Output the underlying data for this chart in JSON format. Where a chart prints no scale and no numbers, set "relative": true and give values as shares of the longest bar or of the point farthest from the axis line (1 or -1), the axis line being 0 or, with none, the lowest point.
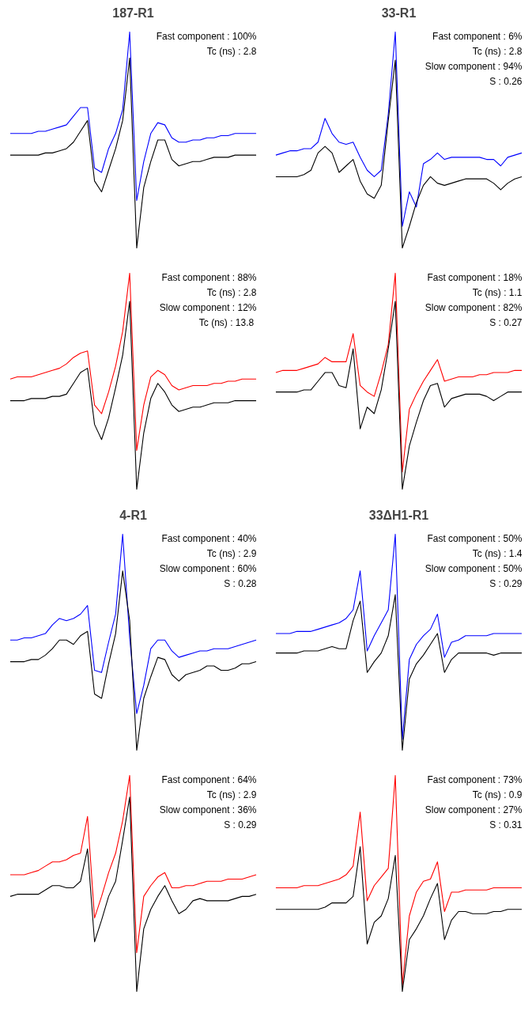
{
  "chart_data": [
    {
      "type": "line",
      "title": "187-R1",
      "relative": true,
      "categories": [
        null,
        null,
        null,
        null,
        null,
        null,
        null,
        null,
        null,
        null,
        null,
        null,
        null,
        null,
        null,
        null,
        null,
        null,
        null,
        null,
        null,
        null,
        null,
        null,
        null,
        null,
        null,
        null,
        null,
        null,
        null,
        null,
        null,
        null,
        null,
        null
      ],
      "annotations": [
        "Fast component : 100%",
        "Tc (ns) : 2.8"
      ],
      "series": [
        {
          "color": "#0000ff",
          "values": [
            0.53,
            0.53,
            0.53,
            0.53,
            0.54,
            0.54,
            0.55,
            0.56,
            0.57,
            0.61,
            0.65,
            0.65,
            0.37,
            0.35,
            0.46,
            0.53,
            0.64,
            1.0,
            0.22,
            0.4,
            0.53,
            0.58,
            0.57,
            0.51,
            0.49,
            0.49,
            0.5,
            0.5,
            0.51,
            0.51,
            0.52,
            0.52,
            0.53,
            0.53,
            0.53,
            0.53
          ]
        },
        {
          "color": "#000000",
          "values": [
            0.43,
            0.43,
            0.43,
            0.43,
            0.43,
            0.44,
            0.44,
            0.45,
            0.46,
            0.49,
            0.54,
            0.59,
            0.31,
            0.26,
            0.36,
            0.46,
            0.59,
            0.88,
            0.0,
            0.28,
            0.4,
            0.5,
            0.5,
            0.41,
            0.38,
            0.39,
            0.4,
            0.4,
            0.41,
            0.42,
            0.42,
            0.42,
            0.43,
            0.43,
            0.43,
            0.43
          ]
        }
      ]
    },
    {
      "type": "line",
      "title": "33-R1",
      "relative": true,
      "categories": [
        null,
        null,
        null,
        null,
        null,
        null,
        null,
        null,
        null,
        null,
        null,
        null,
        null,
        null,
        null,
        null,
        null,
        null,
        null,
        null,
        null,
        null,
        null,
        null,
        null,
        null,
        null,
        null,
        null,
        null,
        null,
        null,
        null,
        null,
        null,
        null
      ],
      "annotations": [
        "Fast component : 6%",
        "Tc (ns) : 2.8",
        "Slow component : 94%",
        "S : 0.26"
      ],
      "series": [
        {
          "color": "#0000ff",
          "values": [
            0.43,
            0.44,
            0.45,
            0.45,
            0.46,
            0.46,
            0.49,
            0.6,
            0.53,
            0.49,
            0.48,
            0.49,
            0.42,
            0.36,
            0.33,
            0.36,
            0.62,
            1.0,
            0.1,
            0.26,
            0.19,
            0.39,
            0.41,
            0.44,
            0.41,
            0.42,
            0.42,
            0.42,
            0.42,
            0.42,
            0.41,
            0.41,
            0.38,
            0.42,
            0.43,
            0.44
          ]
        },
        {
          "color": "#000000",
          "values": [
            0.33,
            0.33,
            0.33,
            0.33,
            0.34,
            0.36,
            0.44,
            0.47,
            0.44,
            0.35,
            0.38,
            0.41,
            0.31,
            0.25,
            0.23,
            0.29,
            0.59,
            0.87,
            0.0,
            0.1,
            0.21,
            0.29,
            0.33,
            0.3,
            0.29,
            0.3,
            0.31,
            0.32,
            0.32,
            0.32,
            0.32,
            0.3,
            0.27,
            0.3,
            0.32,
            0.33
          ]
        }
      ]
    },
    {
      "type": "line",
      "relative": true,
      "categories": [
        null,
        null,
        null,
        null,
        null,
        null,
        null,
        null,
        null,
        null,
        null,
        null,
        null,
        null,
        null,
        null,
        null,
        null,
        null,
        null,
        null,
        null,
        null,
        null,
        null,
        null,
        null,
        null,
        null,
        null,
        null,
        null,
        null,
        null,
        null,
        null
      ],
      "annotations": [
        "Fast component : 88%",
        "Tc (ns) : 2.8",
        "Slow component : 12%",
        "Tc (ns)  : 13.8"
      ],
      "series": [
        {
          "color": "#ff0000",
          "values": [
            0.51,
            0.52,
            0.52,
            0.52,
            0.53,
            0.54,
            0.55,
            0.56,
            0.58,
            0.61,
            0.63,
            0.64,
            0.39,
            0.35,
            0.45,
            0.57,
            0.73,
            1.0,
            0.18,
            0.39,
            0.52,
            0.55,
            0.53,
            0.48,
            0.46,
            0.47,
            0.48,
            0.48,
            0.48,
            0.49,
            0.49,
            0.5,
            0.5,
            0.51,
            0.51,
            0.51
          ]
        },
        {
          "color": "#000000",
          "values": [
            0.41,
            0.41,
            0.41,
            0.42,
            0.42,
            0.42,
            0.43,
            0.43,
            0.44,
            0.49,
            0.54,
            0.56,
            0.3,
            0.23,
            0.33,
            0.47,
            0.62,
            0.87,
            0.0,
            0.26,
            0.42,
            0.49,
            0.45,
            0.39,
            0.36,
            0.37,
            0.38,
            0.38,
            0.39,
            0.4,
            0.4,
            0.4,
            0.41,
            0.41,
            0.41,
            0.41
          ]
        }
      ]
    },
    {
      "type": "line",
      "relative": true,
      "categories": [
        null,
        null,
        null,
        null,
        null,
        null,
        null,
        null,
        null,
        null,
        null,
        null,
        null,
        null,
        null,
        null,
        null,
        null,
        null,
        null,
        null,
        null,
        null,
        null,
        null,
        null,
        null,
        null,
        null,
        null,
        null,
        null,
        null,
        null,
        null,
        null
      ],
      "annotations": [
        "Fast component : 18%",
        "Tc (ns) : 1.1",
        "Slow component : 82%",
        "S : 0.27"
      ],
      "series": [
        {
          "color": "#ff0000",
          "values": [
            0.54,
            0.55,
            0.55,
            0.55,
            0.56,
            0.57,
            0.58,
            0.61,
            0.59,
            0.59,
            0.59,
            0.72,
            0.48,
            0.45,
            0.43,
            0.54,
            0.67,
            1.0,
            0.08,
            0.37,
            0.44,
            0.5,
            0.55,
            0.6,
            0.5,
            0.51,
            0.52,
            0.52,
            0.52,
            0.53,
            0.53,
            0.54,
            0.54,
            0.54,
            0.55,
            0.55
          ]
        },
        {
          "color": "#000000",
          "values": [
            0.45,
            0.45,
            0.45,
            0.45,
            0.46,
            0.46,
            0.5,
            0.54,
            0.54,
            0.48,
            0.47,
            0.65,
            0.28,
            0.38,
            0.35,
            0.46,
            0.65,
            0.87,
            0.0,
            0.2,
            0.31,
            0.41,
            0.48,
            0.49,
            0.38,
            0.42,
            0.43,
            0.44,
            0.44,
            0.44,
            0.43,
            0.41,
            0.43,
            0.45,
            0.45,
            0.45
          ]
        }
      ]
    },
    {
      "type": "line",
      "title": "4-R1",
      "relative": true,
      "categories": [
        null,
        null,
        null,
        null,
        null,
        null,
        null,
        null,
        null,
        null,
        null,
        null,
        null,
        null,
        null,
        null,
        null,
        null,
        null,
        null,
        null,
        null,
        null,
        null,
        null,
        null,
        null,
        null,
        null,
        null,
        null,
        null,
        null,
        null,
        null,
        null
      ],
      "annotations": [
        "Fast component : 40%",
        "Tc (ns) : 2.9",
        "Slow component : 60%",
        "S : 0.28"
      ],
      "series": [
        {
          "color": "#0000ff",
          "values": [
            0.51,
            0.51,
            0.52,
            0.52,
            0.53,
            0.54,
            0.58,
            0.61,
            0.6,
            0.61,
            0.63,
            0.67,
            0.37,
            0.36,
            0.5,
            0.63,
            1.0,
            0.52,
            0.17,
            0.3,
            0.47,
            0.51,
            0.51,
            0.46,
            0.43,
            0.44,
            0.45,
            0.46,
            0.46,
            0.47,
            0.47,
            0.47,
            0.48,
            0.49,
            0.5,
            0.51
          ]
        },
        {
          "color": "#000000",
          "values": [
            0.41,
            0.41,
            0.41,
            0.42,
            0.42,
            0.44,
            0.47,
            0.51,
            0.51,
            0.49,
            0.53,
            0.55,
            0.26,
            0.24,
            0.4,
            0.54,
            0.83,
            0.6,
            0.0,
            0.24,
            0.34,
            0.43,
            0.42,
            0.35,
            0.32,
            0.35,
            0.36,
            0.37,
            0.39,
            0.39,
            0.37,
            0.37,
            0.38,
            0.4,
            0.4,
            0.41
          ]
        }
      ]
    },
    {
      "type": "line",
      "title": "33ΔH1-R1",
      "relative": true,
      "categories": [
        null,
        null,
        null,
        null,
        null,
        null,
        null,
        null,
        null,
        null,
        null,
        null,
        null,
        null,
        null,
        null,
        null,
        null,
        null,
        null,
        null,
        null,
        null,
        null,
        null,
        null,
        null,
        null,
        null,
        null,
        null,
        null,
        null,
        null,
        null,
        null
      ],
      "annotations": [
        "Fast component : 50%",
        "Tc (ns) : 1.4",
        "Slow component : 50%",
        "S : 0.29"
      ],
      "series": [
        {
          "color": "#0000ff",
          "values": [
            0.54,
            0.54,
            0.54,
            0.55,
            0.55,
            0.55,
            0.56,
            0.57,
            0.58,
            0.59,
            0.61,
            0.65,
            0.83,
            0.46,
            0.53,
            0.59,
            0.65,
            1.0,
            0.05,
            0.42,
            0.49,
            0.53,
            0.56,
            0.63,
            0.43,
            0.5,
            0.51,
            0.53,
            0.53,
            0.53,
            0.53,
            0.54,
            0.54,
            0.54,
            0.54,
            0.54
          ]
        },
        {
          "color": "#000000",
          "values": [
            0.45,
            0.45,
            0.45,
            0.45,
            0.46,
            0.46,
            0.46,
            0.47,
            0.48,
            0.47,
            0.47,
            0.6,
            0.69,
            0.36,
            0.41,
            0.45,
            0.53,
            0.72,
            0.0,
            0.33,
            0.4,
            0.44,
            0.49,
            0.54,
            0.36,
            0.42,
            0.45,
            0.45,
            0.45,
            0.45,
            0.45,
            0.44,
            0.45,
            0.45,
            0.45,
            0.45
          ]
        }
      ]
    },
    {
      "type": "line",
      "relative": true,
      "categories": [
        null,
        null,
        null,
        null,
        null,
        null,
        null,
        null,
        null,
        null,
        null,
        null,
        null,
        null,
        null,
        null,
        null,
        null,
        null,
        null,
        null,
        null,
        null,
        null,
        null,
        null,
        null,
        null,
        null,
        null,
        null,
        null,
        null,
        null,
        null,
        null
      ],
      "annotations": [
        "Fast component : 64%",
        "Tc (ns) : 2.9",
        "Slow component : 36%",
        "S : 0.29"
      ],
      "series": [
        {
          "color": "#ff0000",
          "values": [
            0.54,
            0.54,
            0.54,
            0.55,
            0.56,
            0.58,
            0.6,
            0.6,
            0.61,
            0.63,
            0.64,
            0.81,
            0.34,
            0.44,
            0.55,
            0.64,
            0.79,
            1.0,
            0.18,
            0.44,
            0.49,
            0.53,
            0.55,
            0.48,
            0.48,
            0.49,
            0.49,
            0.5,
            0.51,
            0.51,
            0.51,
            0.52,
            0.52,
            0.52,
            0.53,
            0.54
          ]
        },
        {
          "color": "#000000",
          "values": [
            0.44,
            0.45,
            0.45,
            0.45,
            0.45,
            0.47,
            0.49,
            0.49,
            0.48,
            0.48,
            0.51,
            0.66,
            0.23,
            0.33,
            0.44,
            0.51,
            0.7,
            0.9,
            0.0,
            0.29,
            0.38,
            0.44,
            0.49,
            0.42,
            0.36,
            0.38,
            0.42,
            0.43,
            0.42,
            0.42,
            0.42,
            0.42,
            0.43,
            0.44,
            0.44,
            0.45
          ]
        }
      ]
    },
    {
      "type": "line",
      "relative": true,
      "categories": [
        null,
        null,
        null,
        null,
        null,
        null,
        null,
        null,
        null,
        null,
        null,
        null,
        null,
        null,
        null,
        null,
        null,
        null,
        null,
        null,
        null,
        null,
        null,
        null,
        null,
        null,
        null,
        null,
        null,
        null,
        null,
        null,
        null,
        null,
        null,
        null
      ],
      "annotations": [
        "Fast component : 73%",
        "Tc (ns) : 0.9",
        "Slow component : 27%",
        "S : 0.31"
      ],
      "series": [
        {
          "color": "#ff0000",
          "values": [
            0.48,
            0.48,
            0.48,
            0.48,
            0.49,
            0.49,
            0.49,
            0.5,
            0.51,
            0.52,
            0.54,
            0.58,
            0.83,
            0.42,
            0.49,
            0.53,
            0.57,
            1.0,
            0.03,
            0.35,
            0.46,
            0.51,
            0.52,
            0.6,
            0.37,
            0.46,
            0.46,
            0.47,
            0.47,
            0.47,
            0.47,
            0.48,
            0.48,
            0.48,
            0.48,
            0.48
          ]
        },
        {
          "color": "#000000",
          "values": [
            0.38,
            0.38,
            0.38,
            0.38,
            0.38,
            0.38,
            0.38,
            0.39,
            0.41,
            0.41,
            0.41,
            0.44,
            0.67,
            0.22,
            0.32,
            0.35,
            0.43,
            0.63,
            0.0,
            0.24,
            0.29,
            0.35,
            0.43,
            0.5,
            0.24,
            0.33,
            0.37,
            0.37,
            0.36,
            0.36,
            0.36,
            0.37,
            0.37,
            0.38,
            0.38,
            0.38
          ]
        }
      ]
    }
  ]
}
